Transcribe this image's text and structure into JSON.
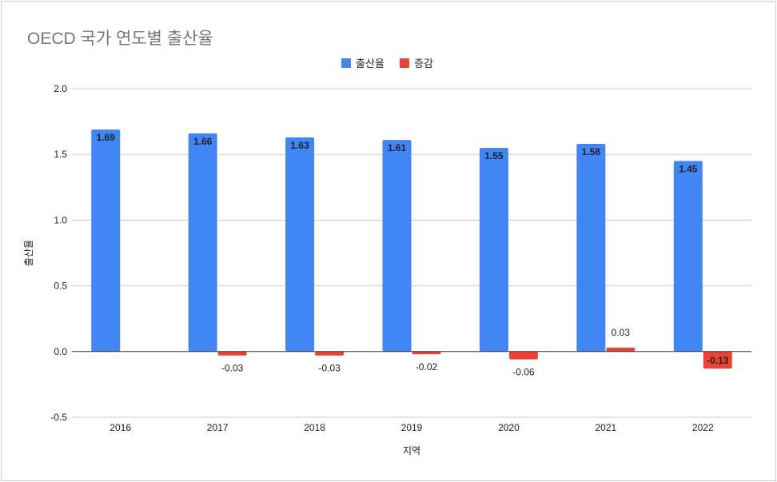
{
  "chart_data": {
    "type": "bar",
    "title": "OECD 국가 연도별 출산율",
    "xlabel": "지역",
    "ylabel": "출산율",
    "categories": [
      "2016",
      "2017",
      "2018",
      "2019",
      "2020",
      "2021",
      "2022"
    ],
    "series": [
      {
        "name": "출산율",
        "color": "#4285f4",
        "values": [
          1.69,
          1.66,
          1.63,
          1.61,
          1.55,
          1.58,
          1.45
        ],
        "labels": [
          "1.69",
          "1.66",
          "1.63",
          "1.61",
          "1.55",
          "1.58",
          "1.45"
        ]
      },
      {
        "name": "증감",
        "color": "#ea4335",
        "values": [
          null,
          -0.03,
          -0.03,
          -0.02,
          -0.06,
          0.03,
          -0.13
        ],
        "labels": [
          null,
          "-0.03",
          "-0.03",
          "-0.02",
          "-0.06",
          "0.03",
          "-0.13"
        ]
      }
    ],
    "ylim": [
      -0.5,
      2.0
    ],
    "yticks": [
      "2.0",
      "1.5",
      "1.0",
      "0.5",
      "0.0",
      "-0.5"
    ],
    "grid": true,
    "legend_position": "top-center"
  }
}
